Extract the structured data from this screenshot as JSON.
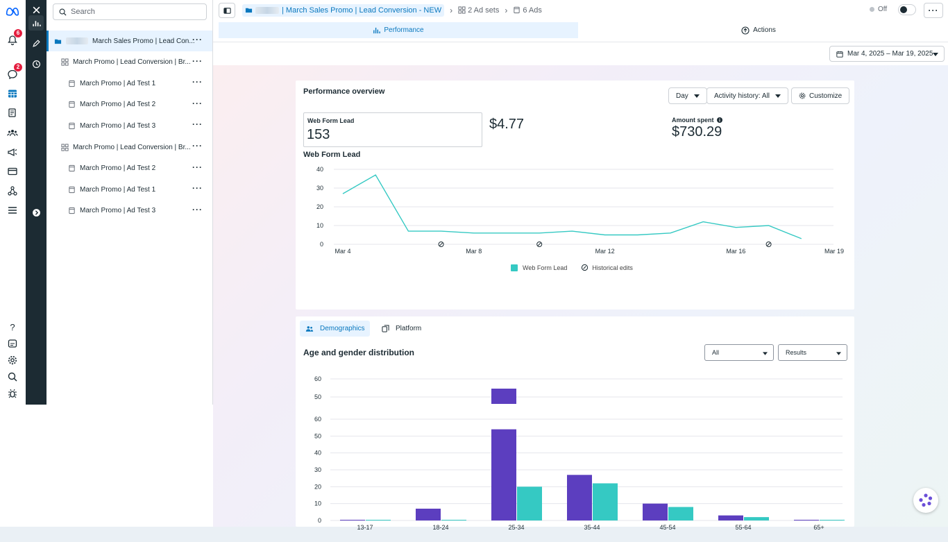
{
  "rail": {
    "notifications_badge": "6",
    "messages_badge": "2",
    "icons": [
      "meta-logo-icon",
      "notifications-icon",
      "messages-icon",
      "ads-manager-icon",
      "pages-icon",
      "audiences-icon",
      "campaigns-icon",
      "billing-icon",
      "business-icon",
      "menu-icon",
      "help-icon",
      "reports-icon",
      "settings-icon",
      "search-icon",
      "debug-icon"
    ]
  },
  "tree": {
    "search_placeholder": "Search",
    "items": [
      {
        "label": "March Sales Promo | Lead Con...",
        "type": "campaign"
      },
      {
        "label": "March Promo | Lead Conversion | Br...",
        "type": "adset"
      },
      {
        "label": "March Promo | Ad Test 1",
        "type": "ad"
      },
      {
        "label": "March Promo | Ad Test 2",
        "type": "ad"
      },
      {
        "label": "March Promo | Ad Test 3",
        "type": "ad"
      },
      {
        "label": "March Promo | Lead Conversion | Br...",
        "type": "adset"
      },
      {
        "label": "March Promo | Ad Test 2",
        "type": "ad"
      },
      {
        "label": "March Promo | Ad Test 1",
        "type": "ad"
      },
      {
        "label": "March Promo | Ad Test 3",
        "type": "ad"
      }
    ]
  },
  "topbar": {
    "campaign_label": "| March Sales Promo | Lead Conversion - NEW",
    "adsets_label": "2 Ad sets",
    "ads_label": "6 Ads",
    "status_label": "Off"
  },
  "tabs": {
    "performance": "Performance",
    "actions": "Actions"
  },
  "date_range": "Mar 4, 2025 – Mar 19, 2025",
  "performance": {
    "title": "Performance overview",
    "day_label": "Day",
    "activity_label": "Activity history: All",
    "customize_label": "Customize",
    "metric_label": "Web Form Lead",
    "metric_value": "153",
    "cost_value": "$4.77",
    "spent_label": "Amount spent",
    "spent_value": "$730.29",
    "chart_title": "Web Form Lead",
    "legend_series": "Web Form Lead",
    "legend_edits": "Historical edits"
  },
  "demographics": {
    "tab_demographics": "Demographics",
    "tab_platform": "Platform",
    "title": "Age and gender distribution",
    "filter_all": "All",
    "filter_results": "Results"
  },
  "chart_data": [
    {
      "type": "line",
      "title": "Web Form Lead",
      "x_ticks": [
        "Mar 4",
        "Mar 8",
        "Mar 12",
        "Mar 16",
        "Mar 19"
      ],
      "x": [
        "Mar 4",
        "Mar 5",
        "Mar 6",
        "Mar 7",
        "Mar 8",
        "Mar 9",
        "Mar 10",
        "Mar 11",
        "Mar 12",
        "Mar 13",
        "Mar 14",
        "Mar 15",
        "Mar 16",
        "Mar 17",
        "Mar 18"
      ],
      "series": [
        {
          "name": "Web Form Lead",
          "color": "#35c9c3",
          "values": [
            27,
            37,
            7,
            7,
            6,
            6,
            6,
            7,
            5,
            5,
            6,
            12,
            9,
            10,
            3
          ]
        }
      ],
      "historical_edits": [
        "Mar 7",
        "Mar 10",
        "Mar 17"
      ],
      "ylim": [
        0,
        40
      ],
      "y_ticks": [
        0,
        10,
        20,
        30,
        40
      ]
    },
    {
      "type": "bar",
      "title": "Age and gender distribution",
      "categories": [
        "13-17",
        "18-24",
        "25-34",
        "35-44",
        "45-54",
        "55-64",
        "65+"
      ],
      "series": [
        {
          "color": "#5c3ebf",
          "values": [
            0,
            7,
            54,
            27,
            10,
            3,
            0
          ]
        },
        {
          "color": "#35c9c3",
          "values": [
            0,
            0,
            20,
            22,
            8,
            2,
            0
          ]
        }
      ],
      "ylim": [
        0,
        60
      ],
      "y_ticks": [
        0,
        10,
        20,
        30,
        40,
        50,
        60
      ]
    }
  ]
}
